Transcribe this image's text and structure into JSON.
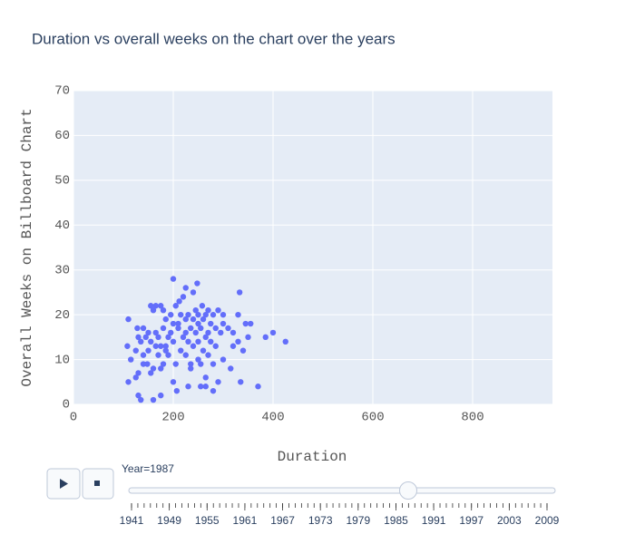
{
  "chart_data": {
    "type": "scatter",
    "title": "Duration vs overall weeks on the chart over the years",
    "x_label": "Duration",
    "y_label": "Overall Weeks on Billboard Chart",
    "color": "#636efa",
    "xlim": [
      0,
      960
    ],
    "xticks": [
      0,
      200,
      400,
      600,
      800
    ],
    "ylim": [
      0,
      70
    ],
    "yticks": [
      0,
      10,
      20,
      30,
      40,
      50,
      60,
      70
    ],
    "grid": true,
    "x": [
      200,
      248,
      225,
      333,
      240,
      220,
      212,
      205,
      155,
      165,
      175,
      160,
      180,
      258,
      270,
      245,
      290,
      110,
      195,
      215,
      230,
      250,
      265,
      280,
      300,
      330,
      128,
      140,
      185,
      200,
      225,
      240,
      260,
      275,
      300,
      345,
      355,
      150,
      165,
      180,
      210,
      235,
      255,
      285,
      310,
      320,
      130,
      145,
      170,
      190,
      220,
      245,
      265,
      295,
      385,
      400,
      425,
      108,
      135,
      155,
      175,
      200,
      230,
      250,
      275,
      330,
      350,
      125,
      150,
      165,
      185,
      215,
      240,
      260,
      285,
      320,
      340,
      115,
      140,
      170,
      190,
      225,
      250,
      270,
      300,
      148,
      160,
      180,
      205,
      235,
      255,
      280,
      315,
      130,
      155,
      175,
      235,
      265,
      110,
      125,
      200,
      230,
      255,
      265,
      290,
      335,
      370,
      130,
      135,
      160,
      175,
      207,
      280,
      140,
      185,
      210,
      225,
      195,
      250,
      270
    ],
    "values": [
      28,
      27,
      26,
      25,
      25,
      24,
      23,
      22,
      22,
      22,
      22,
      21,
      21,
      22,
      21,
      21,
      21,
      19,
      20,
      20,
      20,
      20,
      20,
      20,
      20,
      20,
      17,
      17,
      19,
      18,
      19,
      19,
      19,
      18,
      18,
      18,
      18,
      16,
      16,
      17,
      17,
      17,
      17,
      17,
      17,
      16,
      15,
      15,
      15,
      15,
      15,
      16,
      15,
      16,
      15,
      16,
      14,
      13,
      14,
      14,
      13,
      14,
      14,
      14,
      14,
      14,
      15,
      12,
      12,
      13,
      12,
      12,
      13,
      12,
      13,
      13,
      12,
      10,
      11,
      11,
      11,
      11,
      10,
      11,
      10,
      9,
      8,
      9,
      9,
      9,
      9,
      9,
      8,
      7,
      7,
      8,
      8,
      6,
      5,
      6,
      5,
      4,
      4,
      4,
      5,
      5,
      4,
      2,
      1,
      1,
      2,
      3,
      3,
      9,
      13,
      18,
      16,
      16,
      18,
      16
    ],
    "slider": {
      "current_label": "Year=1987",
      "labels": [
        "1941",
        "1949",
        "1955",
        "1961",
        "1967",
        "1973",
        "1979",
        "1985",
        "1991",
        "1997",
        "2003",
        "2009"
      ]
    }
  }
}
